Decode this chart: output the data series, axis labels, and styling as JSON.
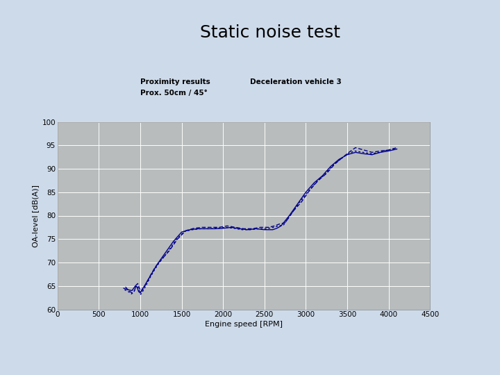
{
  "title": "Static noise test",
  "subtitle1": "Proximity results",
  "subtitle2": "Deceleration vehicle 3",
  "subtitle3": "Prox. 50cm / 45°",
  "xlabel": "Engine speed [RPM]",
  "ylabel": "OA-level [dB(A)]",
  "xlim": [
    0,
    4500
  ],
  "ylim": [
    60,
    100
  ],
  "xticks": [
    0,
    500,
    1000,
    1500,
    2000,
    2500,
    3000,
    3500,
    4000,
    4500
  ],
  "yticks": [
    60,
    65,
    70,
    75,
    80,
    85,
    90,
    95,
    100
  ],
  "plot_bg": "#b8bcbc",
  "line_color": "#00008b",
  "fig_bg": "#cddaea",
  "white_top_bg": "#ffffff",
  "curve1_x": [
    800,
    850,
    900,
    920,
    940,
    960,
    980,
    1000,
    1020,
    1050,
    1100,
    1150,
    1200,
    1300,
    1400,
    1500,
    1600,
    1700,
    1800,
    1900,
    2000,
    2100,
    2200,
    2300,
    2400,
    2500,
    2600,
    2650,
    2700,
    2800,
    2900,
    3000,
    3100,
    3200,
    3300,
    3400,
    3500,
    3600,
    3700,
    3800,
    3900,
    4000,
    4100
  ],
  "curve1_y": [
    64.5,
    64.2,
    64.0,
    64.5,
    65.0,
    64.8,
    63.8,
    63.5,
    64.2,
    65.0,
    66.5,
    68.0,
    69.5,
    72.0,
    74.5,
    76.5,
    77.0,
    77.2,
    77.2,
    77.2,
    77.3,
    77.5,
    77.2,
    77.0,
    77.2,
    77.0,
    77.0,
    77.3,
    77.8,
    80.0,
    82.5,
    85.0,
    87.0,
    88.5,
    90.5,
    92.0,
    93.0,
    93.5,
    93.2,
    93.0,
    93.5,
    93.8,
    94.2
  ],
  "curve2_x": [
    820,
    860,
    900,
    930,
    950,
    970,
    990,
    1010,
    1040,
    1080,
    1130,
    1180,
    1250,
    1350,
    1450,
    1550,
    1650,
    1750,
    1850,
    1950,
    2050,
    2150,
    2250,
    2350,
    2450,
    2550,
    2620,
    2680,
    2750,
    2850,
    2950,
    3050,
    3150,
    3250,
    3350,
    3450,
    3520,
    3600,
    3700,
    3800,
    3900,
    4000,
    4100
  ],
  "curve2_y": [
    64.8,
    64.0,
    63.5,
    64.0,
    65.2,
    65.5,
    64.5,
    63.8,
    64.5,
    65.8,
    67.5,
    69.0,
    70.5,
    72.5,
    75.0,
    76.8,
    77.3,
    77.5,
    77.5,
    77.5,
    77.8,
    77.5,
    77.2,
    77.2,
    77.5,
    77.5,
    77.8,
    78.2,
    78.5,
    81.0,
    83.0,
    85.5,
    87.5,
    89.0,
    91.0,
    92.5,
    93.5,
    94.5,
    94.0,
    93.5,
    93.8,
    94.0,
    94.5
  ],
  "curve3_x": [
    810,
    855,
    895,
    925,
    945,
    965,
    985,
    1005,
    1035,
    1075,
    1125,
    1175,
    1230,
    1330,
    1430,
    1530,
    1630,
    1730,
    1830,
    1930,
    2030,
    2130,
    2230,
    2330,
    2430,
    2530,
    2610,
    2670,
    2730,
    2830,
    2930,
    3030,
    3130,
    3230,
    3330,
    3430,
    3510,
    3590,
    3690,
    3790,
    3890,
    3990,
    4090
  ],
  "curve3_y": [
    64.2,
    63.8,
    63.3,
    63.8,
    64.8,
    65.0,
    64.2,
    63.2,
    64.0,
    65.3,
    67.0,
    68.5,
    70.0,
    72.2,
    74.8,
    76.6,
    77.0,
    77.2,
    77.2,
    77.3,
    77.5,
    77.3,
    77.0,
    77.0,
    77.2,
    77.2,
    77.5,
    77.8,
    78.0,
    80.5,
    83.0,
    85.2,
    87.2,
    88.8,
    90.8,
    92.2,
    93.2,
    93.8,
    93.5,
    93.2,
    93.5,
    94.0,
    94.3
  ]
}
